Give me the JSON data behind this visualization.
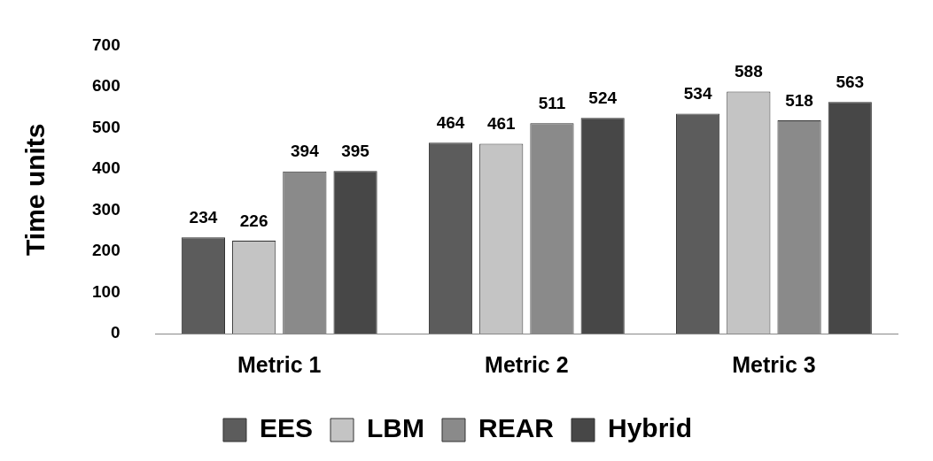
{
  "chart_data": {
    "type": "bar",
    "ylabel": "Time units",
    "categories": [
      "Metric 1",
      "Metric 2",
      "Metric 3"
    ],
    "series": [
      {
        "name": "EES",
        "color": "#5c5c5c",
        "values": [
          234,
          464,
          534
        ]
      },
      {
        "name": "LBM",
        "color": "#c4c4c4",
        "values": [
          226,
          461,
          588
        ]
      },
      {
        "name": "REAR",
        "color": "#8a8a8a",
        "values": [
          394,
          511,
          518
        ]
      },
      {
        "name": "Hybrid",
        "color": "#474747",
        "values": [
          395,
          524,
          563
        ]
      }
    ],
    "ylim": [
      0,
      700
    ],
    "yticks": [
      0,
      100,
      200,
      300,
      400,
      500,
      600,
      700
    ],
    "grid": false,
    "legend": "bottom",
    "data_labels": true
  }
}
